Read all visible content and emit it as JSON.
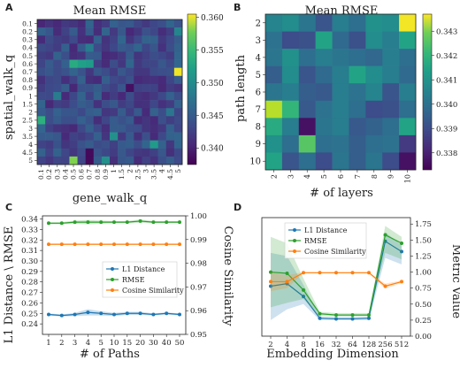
{
  "panels": {
    "a": "A",
    "b": "B",
    "c": "C",
    "d": "D"
  },
  "chart_data": [
    {
      "type": "heatmap",
      "title": "Mean RMSE",
      "xlabel": "gene_walk_q",
      "ylabel": "spatial_walk_q",
      "x_ticks": [
        "0.1",
        "0.2",
        "0.3",
        "0.4",
        "0.5",
        "0.6",
        "0.7",
        "0.8",
        "0.9",
        "1",
        "1.5",
        "2",
        "2.5",
        "3",
        "3.5",
        "4",
        "4.5",
        "5"
      ],
      "y_ticks": [
        "0.1",
        "0.2",
        "0.3",
        "0.4",
        "0.5",
        "0.6",
        "0.7",
        "0.8",
        "0.9",
        "1",
        "1.5",
        "2",
        "2.5",
        "3",
        "3.5",
        "4",
        "4.5",
        "5"
      ],
      "colorbar": {
        "min": 0.3375,
        "max": 0.3605,
        "ticks": [
          0.345,
          0.35,
          0.355,
          0.36
        ],
        "tick_labels": [
          "0.345",
          "0.350",
          "0.355",
          "0.360"
        ],
        "tick_extra": [
          0.34
        ],
        "tick_extra_labels": [
          "0.340"
        ]
      },
      "baseline": 0.3425,
      "amplitude": 0.0025,
      "highlights": [
        {
          "row": 5,
          "col": 4,
          "value": 0.3515
        },
        {
          "row": 5,
          "col": 5,
          "value": 0.3505
        },
        {
          "row": 5,
          "col": 6,
          "value": 0.35
        },
        {
          "row": 6,
          "col": 17,
          "value": 0.36
        },
        {
          "row": 12,
          "col": 0,
          "value": 0.352
        },
        {
          "row": 14,
          "col": 9,
          "value": 0.349
        },
        {
          "row": 15,
          "col": 14,
          "value": 0.35
        },
        {
          "row": 17,
          "col": 4,
          "value": 0.356
        },
        {
          "row": 17,
          "col": 8,
          "value": 0.349
        },
        {
          "row": 3,
          "col": 6,
          "value": 0.347
        },
        {
          "row": 9,
          "col": 2,
          "value": 0.347
        },
        {
          "row": 1,
          "col": 17,
          "value": 0.348
        },
        {
          "row": 11,
          "col": 16,
          "value": 0.3465
        },
        {
          "row": 16,
          "col": 6,
          "value": 0.338
        },
        {
          "row": 17,
          "col": 6,
          "value": 0.338
        },
        {
          "row": 8,
          "col": 11,
          "value": 0.3385
        }
      ]
    },
    {
      "type": "heatmap",
      "title": "Mean RMSE",
      "xlabel": "# of layers",
      "ylabel": "path length",
      "x_ticks": [
        "2",
        "3",
        "4",
        "5",
        "6",
        "7",
        "8",
        "9",
        "10"
      ],
      "y_ticks": [
        "2",
        "3",
        "4",
        "5",
        "6",
        "7",
        "8",
        "9",
        "10"
      ],
      "colorbar": {
        "min": 0.3373,
        "max": 0.3437,
        "ticks": [
          0.338,
          0.339,
          0.34,
          0.341,
          0.342,
          0.343
        ],
        "tick_labels": [
          "0.338",
          "0.339",
          "0.340",
          "0.341",
          "0.342",
          "0.343"
        ]
      },
      "values": [
        [
          0.3402,
          0.3404,
          0.3398,
          0.339,
          0.34,
          0.3396,
          0.3405,
          0.3404,
          0.3436
        ],
        [
          0.3397,
          0.3388,
          0.3389,
          0.341,
          0.3395,
          0.3389,
          0.3404,
          0.34,
          0.341
        ],
        [
          0.3398,
          0.3405,
          0.3396,
          0.34,
          0.3398,
          0.3396,
          0.3394,
          0.34,
          0.3396
        ],
        [
          0.3392,
          0.3404,
          0.339,
          0.3395,
          0.34,
          0.341,
          0.3404,
          0.34,
          0.3395
        ],
        [
          0.3398,
          0.34,
          0.3392,
          0.3391,
          0.34,
          0.3397,
          0.3402,
          0.339,
          0.34
        ],
        [
          0.343,
          0.3415,
          0.3391,
          0.3397,
          0.34,
          0.3396,
          0.3388,
          0.3389,
          0.3396
        ],
        [
          0.3412,
          0.34,
          0.3376,
          0.3398,
          0.34,
          0.3391,
          0.3393,
          0.3396,
          0.341
        ],
        [
          0.3405,
          0.3396,
          0.342,
          0.3396,
          0.3397,
          0.3392,
          0.3396,
          0.3397,
          0.3384
        ],
        [
          0.341,
          0.339,
          0.3396,
          0.3388,
          0.3398,
          0.3392,
          0.3398,
          0.3388,
          0.3376
        ]
      ]
    },
    {
      "type": "line",
      "xlabel": "# of Paths",
      "ylabel": "L1 Distance \\ RMSE",
      "ylabel_right": "Cosine Similarity",
      "categories": [
        "1",
        "2",
        "3",
        "4",
        "5",
        "10",
        "15",
        "20",
        "30",
        "40",
        "50"
      ],
      "y_left": {
        "range": [
          0.23,
          0.343
        ],
        "ticks": [
          0.24,
          0.25,
          0.26,
          0.27,
          0.28,
          0.29,
          0.3,
          0.31,
          0.32,
          0.33,
          0.34
        ],
        "tick_labels": [
          "0.24",
          "0.25",
          "0.26",
          "0.27",
          "0.28",
          "0.29",
          "0.30",
          "0.31",
          "0.32",
          "0.33",
          "0.34"
        ]
      },
      "y_right": {
        "range": [
          0.95,
          1.0
        ],
        "ticks": [
          0.95,
          0.96,
          0.97,
          0.98,
          0.99,
          1.0
        ],
        "tick_labels": [
          "0.95",
          "0.96",
          "0.97",
          "0.98",
          "0.99",
          "1.00"
        ]
      },
      "series": [
        {
          "name": "L1 Distance",
          "color": "#1f77b4",
          "axis": "left",
          "values": [
            0.249,
            0.248,
            0.249,
            0.251,
            0.25,
            0.249,
            0.25,
            0.25,
            0.249,
            0.25,
            0.249
          ],
          "band": [
            0.001,
            0.001,
            0.0015,
            0.003,
            0.002,
            0.0015,
            0.0015,
            0.0015,
            0.001,
            0.001,
            0.001
          ]
        },
        {
          "name": "RMSE",
          "color": "#2ca02c",
          "axis": "left",
          "values": [
            0.336,
            0.336,
            0.337,
            0.337,
            0.337,
            0.337,
            0.337,
            0.338,
            0.337,
            0.337,
            0.337
          ],
          "band": [
            0.001,
            0.001,
            0.0015,
            0.002,
            0.0015,
            0.001,
            0.001,
            0.0015,
            0.001,
            0.001,
            0.001
          ]
        },
        {
          "name": "Cosine Similarity",
          "color": "#ff7f0e",
          "axis": "right",
          "values": [
            0.988,
            0.988,
            0.988,
            0.988,
            0.988,
            0.988,
            0.988,
            0.988,
            0.988,
            0.988,
            0.988
          ],
          "band": [
            0.0002,
            0.0002,
            0.0002,
            0.0002,
            0.0002,
            0.0002,
            0.0002,
            0.0002,
            0.0002,
            0.0002,
            0.0002
          ]
        }
      ],
      "legend": "center-right"
    },
    {
      "type": "line",
      "xlabel": "Embedding Dimension",
      "ylabel_right": "Metric Value",
      "categories": [
        "2",
        "4",
        "8",
        "16",
        "32",
        "64",
        "128",
        "256",
        "512"
      ],
      "y": {
        "range": [
          0,
          1.85
        ],
        "ticks": [
          0,
          0.25,
          0.5,
          0.75,
          1.0,
          1.25,
          1.5,
          1.75
        ],
        "tick_labels": [
          "0.00",
          "0.25",
          "0.50",
          "0.75",
          "1.00",
          "1.25",
          "1.50",
          "1.75"
        ]
      },
      "series": [
        {
          "name": "L1 Distance",
          "color": "#1f77b4",
          "values": [
            0.78,
            0.82,
            0.62,
            0.28,
            0.27,
            0.27,
            0.28,
            1.48,
            1.32
          ],
          "lower": [
            0.25,
            0.42,
            0.5,
            0.25,
            0.25,
            0.25,
            0.25,
            1.22,
            1.12
          ],
          "upper": [
            1.3,
            1.25,
            0.8,
            0.3,
            0.3,
            0.3,
            0.3,
            1.62,
            1.42
          ]
        },
        {
          "name": "RMSE",
          "color": "#2ca02c",
          "values": [
            1.0,
            0.98,
            0.72,
            0.35,
            0.33,
            0.33,
            0.33,
            1.58,
            1.45
          ],
          "lower": [
            0.45,
            0.52,
            0.58,
            0.31,
            0.31,
            0.31,
            0.31,
            1.3,
            1.2
          ],
          "upper": [
            1.55,
            1.45,
            0.9,
            0.38,
            0.36,
            0.36,
            0.36,
            1.72,
            1.55
          ]
        },
        {
          "name": "Cosine Similarity",
          "color": "#ff7f0e",
          "values": [
            0.85,
            0.85,
            0.99,
            0.99,
            0.99,
            0.99,
            0.99,
            0.78,
            0.85
          ],
          "lower": [
            0.7,
            0.75,
            0.98,
            0.98,
            0.98,
            0.98,
            0.98,
            0.74,
            0.83
          ],
          "upper": [
            1.0,
            0.95,
            1.0,
            1.0,
            1.0,
            1.0,
            1.0,
            0.82,
            0.87
          ]
        }
      ],
      "legend": "top-left"
    }
  ]
}
